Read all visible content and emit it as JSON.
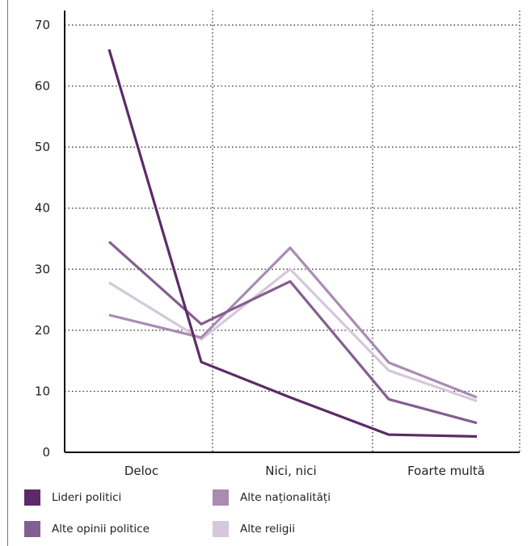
{
  "chart_data": {
    "type": "line",
    "categories": [
      "Deloc",
      "",
      "Nici, nici",
      "",
      "Foarte multă"
    ],
    "y_ticks": [
      "0",
      "10",
      "20",
      "30",
      "40",
      "50",
      "60",
      "70"
    ],
    "ylim": [
      0,
      70
    ],
    "grid": true,
    "legend_position": "bottom",
    "series": [
      {
        "name": "Lideri politici",
        "color": "#5c2a6a",
        "values": [
          66,
          14.8,
          9,
          2.9,
          2.6
        ]
      },
      {
        "name": "Alte naționalități",
        "color": "#a98bb3",
        "values": [
          22.5,
          18.8,
          33.5,
          14.7,
          9
        ]
      },
      {
        "name": "Alte opinii politice",
        "color": "#835f8f",
        "values": [
          34.5,
          21,
          28,
          8.7,
          4.8
        ]
      },
      {
        "name": "Alte religii",
        "color": "#d4c8da",
        "values": [
          27.8,
          18.5,
          30,
          13.4,
          8.4
        ]
      }
    ]
  }
}
